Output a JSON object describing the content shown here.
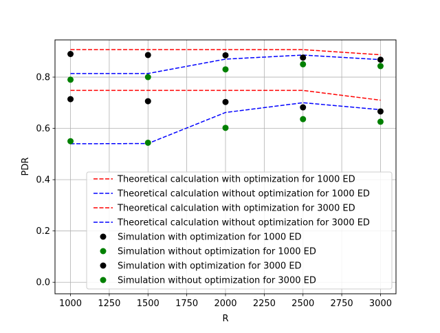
{
  "chart_data": {
    "type": "line",
    "xlabel": "R",
    "ylabel": "PDR",
    "xlim": [
      900,
      3100
    ],
    "ylim": [
      -0.045,
      0.945
    ],
    "xticks": [
      1000,
      1250,
      1500,
      1750,
      2000,
      2250,
      2500,
      2750,
      3000
    ],
    "xtick_labels": [
      "1000",
      "1250",
      "1500",
      "1750",
      "2000",
      "2250",
      "2500",
      "2750",
      "3000"
    ],
    "yticks": [
      0.0,
      0.2,
      0.4,
      0.6,
      0.8
    ],
    "ytick_labels": [
      "0.0",
      "0.2",
      "0.4",
      "0.6",
      "0.8"
    ],
    "grid": true,
    "legend_position": "lower-right",
    "x": [
      1000,
      1500,
      2000,
      2500,
      3000
    ],
    "series": [
      {
        "name": "Theoretical calculation with optimization for 1000 ED",
        "kind": "dashed-line",
        "color": "#ff0000",
        "values": [
          0.907,
          0.907,
          0.907,
          0.907,
          0.887
        ]
      },
      {
        "name": "Theoretical calculation without optimization for 1000 ED",
        "kind": "dashed-line",
        "color": "#0000ff",
        "values": [
          0.814,
          0.814,
          0.87,
          0.886,
          0.868
        ]
      },
      {
        "name": "Theoretical calculation with optimization for 3000 ED",
        "kind": "dashed-line",
        "color": "#ff0000",
        "values": [
          0.748,
          0.748,
          0.748,
          0.748,
          0.71
        ]
      },
      {
        "name": "Theoretical calculation without optimization for 3000 ED",
        "kind": "dashed-line",
        "color": "#0000ff",
        "values": [
          0.54,
          0.541,
          0.662,
          0.7,
          0.673
        ]
      },
      {
        "name": "Simulation with optimization for 1000 ED",
        "kind": "markers",
        "color": "#000000",
        "values": [
          0.89,
          0.886,
          0.885,
          0.876,
          0.868
        ]
      },
      {
        "name": "Simulation without optimization for 1000 ED",
        "kind": "markers",
        "color": "#008000",
        "values": [
          0.79,
          0.8,
          0.83,
          0.85,
          0.843
        ]
      },
      {
        "name": "Simulation with optimization for 3000 ED",
        "kind": "markers",
        "color": "#000000",
        "values": [
          0.714,
          0.706,
          0.703,
          0.682,
          0.666
        ]
      },
      {
        "name": "Simulation without optimization for 3000 ED",
        "kind": "markers",
        "color": "#008000",
        "values": [
          0.55,
          0.544,
          0.602,
          0.636,
          0.626
        ]
      }
    ]
  }
}
